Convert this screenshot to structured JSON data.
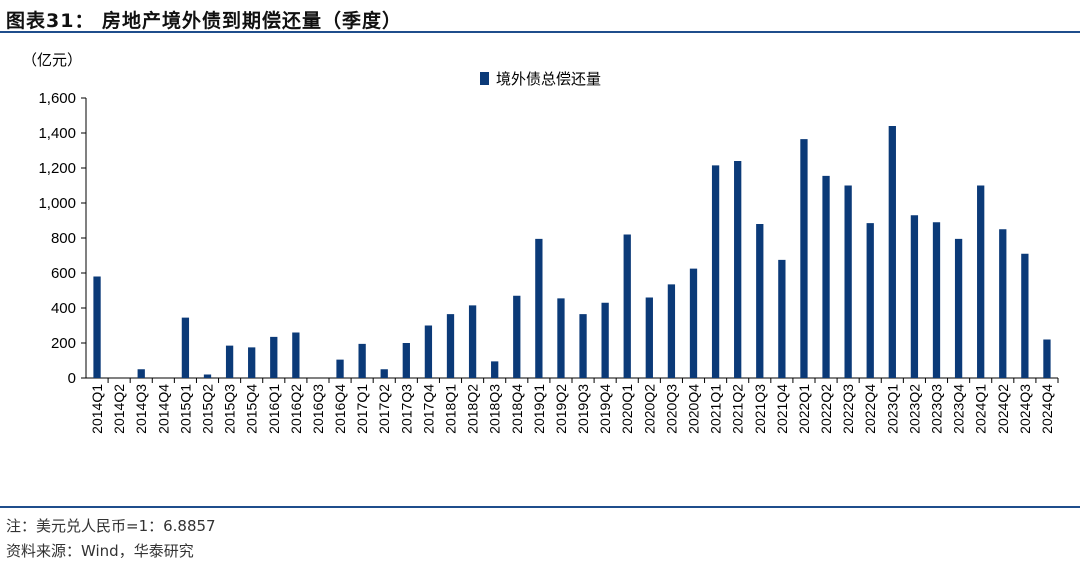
{
  "header": {
    "title": "图表31：  房地产境外债到期偿还量（季度）"
  },
  "colors": {
    "bar": "#0b3a78",
    "rule": "#1f4e8c"
  },
  "chart_data": {
    "type": "bar",
    "unit_label": "（亿元）",
    "title": "",
    "xlabel": "",
    "ylabel": "",
    "ylim": [
      0,
      1600
    ],
    "yticks": [
      0,
      200,
      400,
      600,
      800,
      1000,
      1200,
      1400,
      1600
    ],
    "ytick_labels": [
      "0",
      "200",
      "400",
      "600",
      "800",
      "1,000",
      "1,200",
      "1,400",
      "1,600"
    ],
    "legend_position": "top-center",
    "grid": false,
    "categories": [
      "2014Q1",
      "2014Q2",
      "2014Q3",
      "2014Q4",
      "2015Q1",
      "2015Q2",
      "2015Q3",
      "2015Q4",
      "2016Q1",
      "2016Q2",
      "2016Q3",
      "2016Q4",
      "2017Q1",
      "2017Q2",
      "2017Q3",
      "2017Q4",
      "2018Q1",
      "2018Q2",
      "2018Q3",
      "2018Q4",
      "2019Q1",
      "2019Q2",
      "2019Q3",
      "2019Q4",
      "2020Q1",
      "2020Q2",
      "2020Q3",
      "2020Q4",
      "2021Q1",
      "2021Q2",
      "2021Q3",
      "2021Q4",
      "2022Q1",
      "2022Q2",
      "2022Q3",
      "2022Q4",
      "2023Q1",
      "2023Q2",
      "2023Q3",
      "2023Q4",
      "2024Q1",
      "2024Q2",
      "2024Q3",
      "2024Q4"
    ],
    "series": [
      {
        "name": "境外债总偿还量",
        "values": [
          580,
          0,
          50,
          0,
          345,
          20,
          185,
          175,
          235,
          260,
          0,
          105,
          195,
          50,
          200,
          300,
          365,
          415,
          95,
          470,
          795,
          455,
          365,
          430,
          820,
          460,
          535,
          625,
          1215,
          1240,
          880,
          675,
          1365,
          1155,
          1100,
          885,
          1440,
          930,
          890,
          795,
          1100,
          850,
          710,
          220
        ]
      }
    ]
  },
  "footer": {
    "note": "注：美元兑人民币=1：6.8857",
    "source": "资料来源：Wind，华泰研究"
  }
}
